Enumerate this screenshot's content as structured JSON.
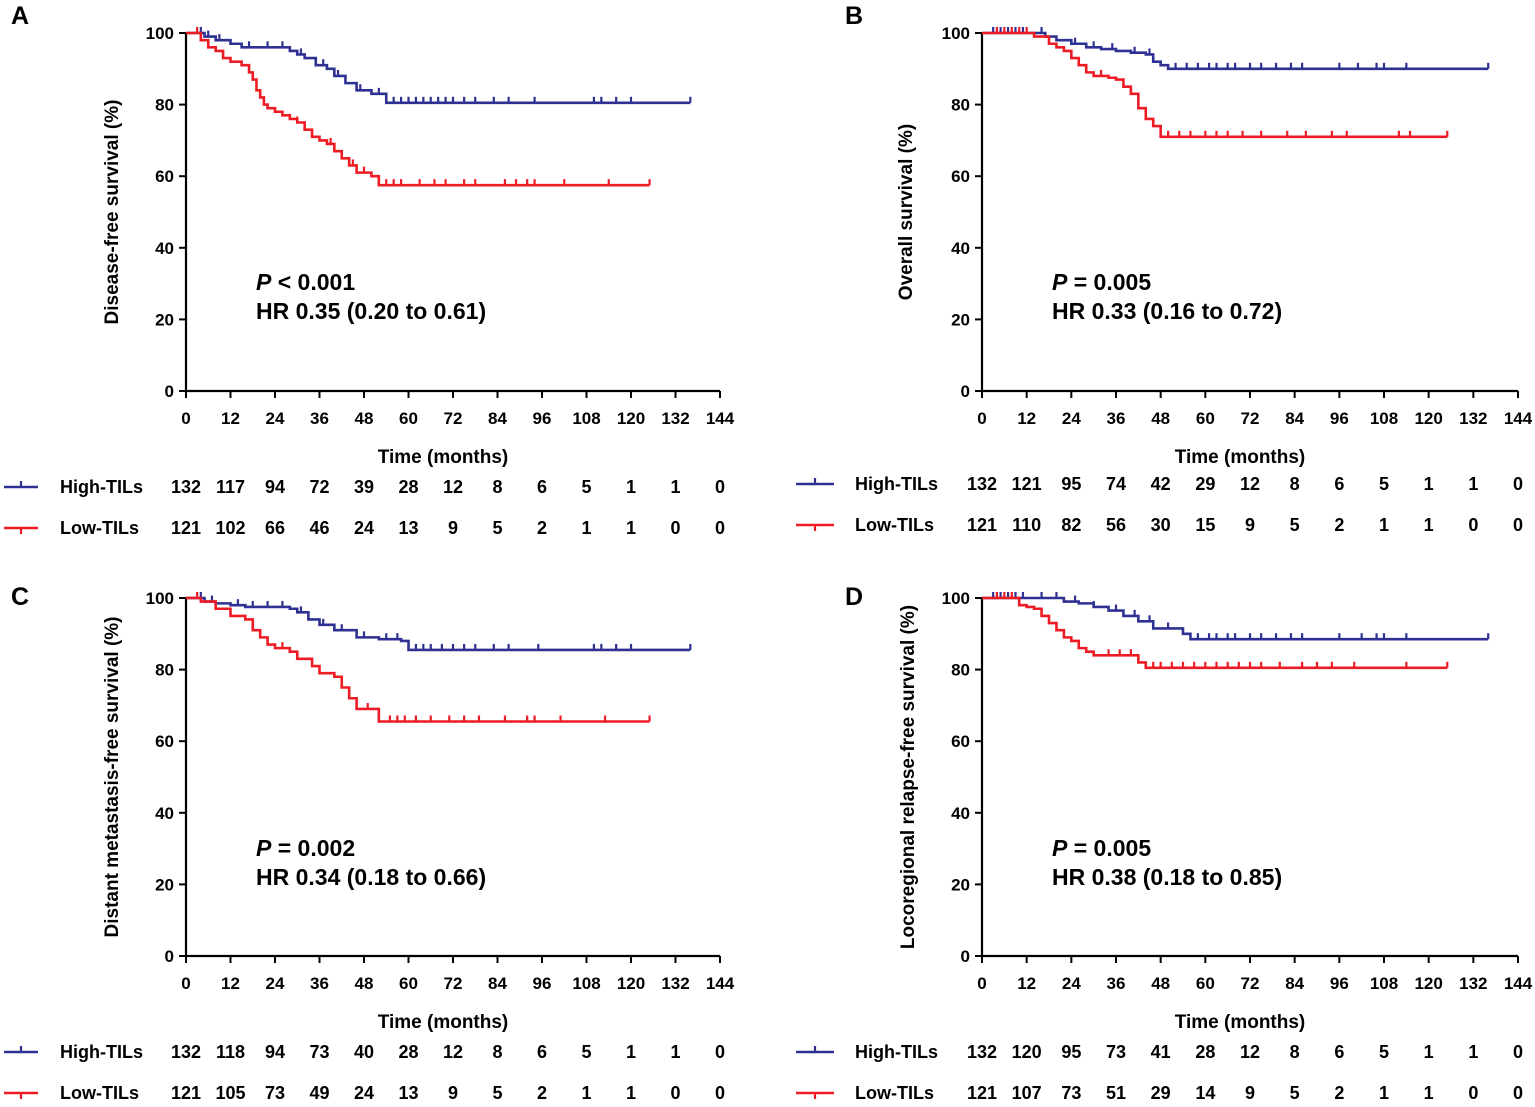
{
  "colors": {
    "high": "#2E3192",
    "low": "#ED1C24",
    "axis": "#000000"
  },
  "chart_data": [
    {
      "type": "line",
      "panel": "A",
      "ylabel": "Disease-free survival (%)",
      "xlabel": "Time (months)",
      "xlim": [
        0,
        144
      ],
      "ylim": [
        0,
        100
      ],
      "xticks": [
        0,
        12,
        24,
        36,
        48,
        60,
        72,
        84,
        96,
        108,
        120,
        132,
        144
      ],
      "yticks": [
        0,
        20,
        40,
        60,
        80,
        100
      ],
      "p_label": "P",
      "p_text": " < 0.001",
      "hr_text": "HR 0.35 (0.20 to 0.61)",
      "series": [
        {
          "name": "High-TILs",
          "color": "#2E3192",
          "x": [
            0,
            5,
            8,
            12,
            15,
            28,
            30,
            32,
            35,
            38,
            40,
            43,
            46,
            50,
            54,
            136
          ],
          "y": [
            100,
            99,
            98,
            97,
            96,
            95,
            94,
            93,
            91,
            90,
            88,
            86,
            84,
            83,
            80.5,
            80.5
          ],
          "censor": [
            4,
            6,
            9,
            17,
            22,
            26,
            31,
            37,
            41,
            47,
            52,
            56,
            58,
            60,
            62,
            64,
            66,
            68,
            70,
            72,
            75,
            78,
            83,
            87,
            94,
            110,
            112,
            116,
            120,
            136
          ]
        },
        {
          "name": "Low-TILs",
          "color": "#ED1C24",
          "x": [
            0,
            4,
            6,
            8,
            10,
            12,
            15,
            17,
            18,
            19,
            20,
            21,
            22,
            24,
            26,
            28,
            30,
            32,
            34,
            36,
            38,
            40,
            42,
            44,
            46,
            50,
            52,
            125
          ],
          "y": [
            100,
            98,
            96,
            95,
            93,
            92,
            91,
            89,
            87,
            84,
            82,
            80,
            79,
            78,
            77,
            76,
            75,
            73,
            71,
            70,
            69,
            67,
            65,
            63,
            61,
            60,
            57.5,
            57.5
          ],
          "censor": [
            3,
            30,
            39,
            45,
            48,
            54,
            56,
            58,
            63,
            67,
            70,
            75,
            78,
            86,
            89,
            92,
            94,
            102,
            114,
            125
          ]
        }
      ],
      "risk_table": {
        "times": [
          0,
          12,
          24,
          36,
          48,
          60,
          72,
          84,
          96,
          108,
          120,
          132,
          144
        ],
        "rows": [
          {
            "label": "High-TILs",
            "values": [
              132,
              117,
              94,
              72,
              39,
              28,
              12,
              8,
              6,
              5,
              1,
              1,
              0
            ]
          },
          {
            "label": "Low-TILs",
            "values": [
              121,
              102,
              66,
              46,
              24,
              13,
              9,
              5,
              2,
              1,
              1,
              0,
              0
            ]
          }
        ]
      }
    },
    {
      "type": "line",
      "panel": "B",
      "ylabel": "Overall survival (%)",
      "xlabel": "Time (months)",
      "xlim": [
        0,
        144
      ],
      "ylim": [
        0,
        100
      ],
      "xticks": [
        0,
        12,
        24,
        36,
        48,
        60,
        72,
        84,
        96,
        108,
        120,
        132,
        144
      ],
      "yticks": [
        0,
        20,
        40,
        60,
        80,
        100
      ],
      "p_label": "P",
      "p_text": " = 0.005",
      "hr_text": "HR 0.33 (0.16 to 0.72)",
      "series": [
        {
          "name": "High-TILs",
          "color": "#2E3192",
          "x": [
            0,
            17,
            20,
            24,
            28,
            32,
            36,
            40,
            44,
            46,
            48,
            50,
            136
          ],
          "y": [
            100,
            99,
            98,
            97,
            96,
            95.5,
            95,
            94.5,
            94,
            92,
            91,
            90,
            90
          ],
          "censor": [
            3,
            5,
            7,
            9,
            11,
            16,
            25,
            30,
            35,
            41,
            45,
            52,
            55,
            58,
            61,
            63,
            66,
            68,
            72,
            75,
            79,
            83,
            86,
            96,
            101,
            106,
            108,
            114,
            136
          ]
        },
        {
          "name": "Low-TILs",
          "color": "#ED1C24",
          "x": [
            0,
            14,
            18,
            20,
            22,
            24,
            26,
            28,
            30,
            34,
            36,
            38,
            40,
            42,
            44,
            46,
            48,
            125
          ],
          "y": [
            100,
            99,
            97,
            96,
            95,
            93,
            91,
            89,
            88,
            87.5,
            87,
            85,
            83,
            79,
            76,
            74,
            71,
            71
          ],
          "censor": [
            4,
            6,
            8,
            10,
            12,
            32,
            50,
            53,
            56,
            60,
            63,
            66,
            70,
            75,
            82,
            87,
            94,
            98,
            112,
            115,
            125
          ]
        }
      ],
      "risk_table": {
        "times": [
          0,
          12,
          24,
          36,
          48,
          60,
          72,
          84,
          96,
          108,
          120,
          132,
          144
        ],
        "rows": [
          {
            "label": "High-TILs",
            "values": [
              132,
              121,
              95,
              74,
              42,
              29,
              12,
              8,
              6,
              5,
              1,
              1,
              0
            ]
          },
          {
            "label": "Low-TILs",
            "values": [
              121,
              110,
              82,
              56,
              30,
              15,
              9,
              5,
              2,
              1,
              1,
              0,
              0
            ]
          }
        ]
      }
    },
    {
      "type": "line",
      "panel": "C",
      "ylabel": "Distant metastasis-free survival (%)",
      "xlabel": "Time (months)",
      "xlim": [
        0,
        144
      ],
      "ylim": [
        0,
        100
      ],
      "xticks": [
        0,
        12,
        24,
        36,
        48,
        60,
        72,
        84,
        96,
        108,
        120,
        132,
        144
      ],
      "yticks": [
        0,
        20,
        40,
        60,
        80,
        100
      ],
      "p_label": "P",
      "p_text": " = 0.002",
      "hr_text": "HR 0.34 (0.18 to 0.66)",
      "series": [
        {
          "name": "High-TILs",
          "color": "#2E3192",
          "x": [
            0,
            5,
            8,
            12,
            16,
            28,
            30,
            33,
            36,
            40,
            46,
            52,
            58,
            60,
            136
          ],
          "y": [
            100,
            99,
            98.5,
            98,
            97.5,
            97,
            96,
            94,
            92.5,
            91,
            89,
            88.5,
            88,
            85.5,
            85.5
          ],
          "censor": [
            4,
            7,
            14,
            18,
            22,
            26,
            31,
            37,
            42,
            48,
            54,
            57,
            62,
            64,
            66,
            69,
            72,
            75,
            78,
            83,
            87,
            95,
            110,
            112,
            116,
            120,
            136
          ]
        },
        {
          "name": "Low-TILs",
          "color": "#ED1C24",
          "x": [
            0,
            4,
            8,
            12,
            16,
            18,
            20,
            22,
            24,
            28,
            30,
            34,
            36,
            40,
            42,
            44,
            46,
            52,
            125
          ],
          "y": [
            100,
            99,
            97,
            95,
            94,
            91,
            89,
            87,
            86,
            85,
            83,
            81,
            79,
            78,
            75,
            72,
            69,
            65.5,
            65.5
          ],
          "censor": [
            3,
            26,
            49,
            55,
            57,
            59,
            62,
            66,
            71,
            75,
            79,
            86,
            92,
            94,
            101,
            113,
            125
          ]
        }
      ],
      "risk_table": {
        "times": [
          0,
          12,
          24,
          36,
          48,
          60,
          72,
          84,
          96,
          108,
          120,
          132,
          144
        ],
        "rows": [
          {
            "label": "High-TILs",
            "values": [
              132,
              118,
              94,
              73,
              40,
              28,
              12,
              8,
              6,
              5,
              1,
              1,
              0
            ]
          },
          {
            "label": "Low-TILs",
            "values": [
              121,
              105,
              73,
              49,
              24,
              13,
              9,
              5,
              2,
              1,
              1,
              0,
              0
            ]
          }
        ]
      }
    },
    {
      "type": "line",
      "panel": "D",
      "ylabel": "Locoregional relapse-free survival (%)",
      "xlabel": "Time (months)",
      "xlim": [
        0,
        144
      ],
      "ylim": [
        0,
        100
      ],
      "xticks": [
        0,
        12,
        24,
        36,
        48,
        60,
        72,
        84,
        96,
        108,
        120,
        132,
        144
      ],
      "yticks": [
        0,
        20,
        40,
        60,
        80,
        100
      ],
      "p_label": "P",
      "p_text": " = 0.005",
      "hr_text": "HR 0.38 (0.18 to 0.85)",
      "series": [
        {
          "name": "High-TILs",
          "color": "#2E3192",
          "x": [
            0,
            22,
            26,
            30,
            34,
            38,
            42,
            46,
            54,
            56,
            136
          ],
          "y": [
            100,
            99,
            98.5,
            97.5,
            96.5,
            95,
            93.5,
            91.5,
            90,
            88.5,
            88.5
          ],
          "censor": [
            3,
            5,
            7,
            9,
            11,
            16,
            20,
            25,
            30,
            36,
            41,
            45,
            50,
            58,
            61,
            63,
            66,
            68,
            72,
            75,
            79,
            83,
            86,
            96,
            102,
            106,
            108,
            114,
            136
          ]
        },
        {
          "name": "Low-TILs",
          "color": "#ED1C24",
          "x": [
            0,
            10,
            12,
            14,
            16,
            18,
            20,
            22,
            24,
            26,
            28,
            30,
            42,
            44,
            125
          ],
          "y": [
            100,
            98,
            97.5,
            97,
            95,
            93,
            91,
            89,
            88,
            86,
            85,
            84,
            82,
            80.5,
            80.5
          ],
          "censor": [
            4,
            6,
            8,
            34,
            37,
            40,
            46,
            48,
            51,
            54,
            57,
            60,
            63,
            66,
            69,
            72,
            75,
            80,
            86,
            90,
            94,
            100,
            114,
            125
          ]
        }
      ],
      "risk_table": {
        "times": [
          0,
          12,
          24,
          36,
          48,
          60,
          72,
          84,
          96,
          108,
          120,
          132,
          144
        ],
        "rows": [
          {
            "label": "High-TILs",
            "values": [
              132,
              120,
              95,
              73,
              41,
              28,
              12,
              8,
              6,
              5,
              1,
              1,
              0
            ]
          },
          {
            "label": "Low-TILs",
            "values": [
              121,
              107,
              73,
              51,
              29,
              14,
              9,
              5,
              2,
              1,
              1,
              0,
              0
            ]
          }
        ]
      }
    }
  ]
}
